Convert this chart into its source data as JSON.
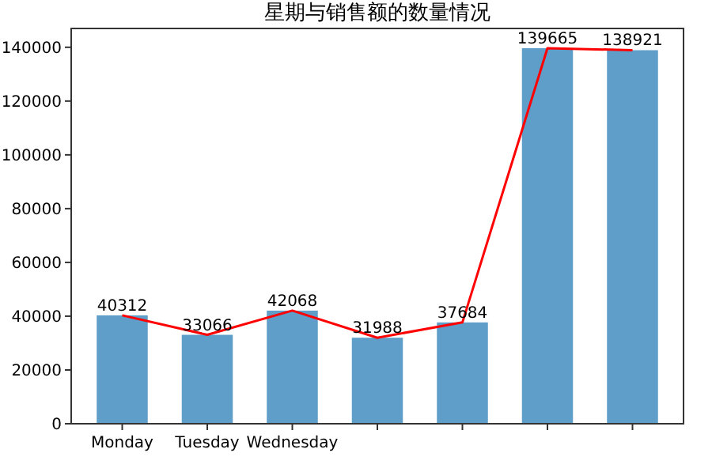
{
  "chart_data": {
    "type": "bar",
    "title": "星期与销售额的数量情况",
    "categories": [
      "Monday",
      "Tuesday",
      "Wednesday",
      null,
      null,
      null,
      null
    ],
    "series": [
      {
        "color": "#5f9ec9",
        "values": [
          40312,
          33066,
          42068,
          31988,
          37684,
          139665,
          138921
        ],
        "value_labels": [
          "40312",
          "33066",
          "42068",
          "31988",
          "37684",
          "139665",
          "138921"
        ]
      },
      {
        "type": "line",
        "color": "#ff0000",
        "values": [
          40312,
          33066,
          42068,
          31988,
          37684,
          139665,
          138921
        ]
      }
    ],
    "ylim": [
      0,
      147000
    ],
    "yticks": [
      0,
      20000,
      40000,
      60000,
      80000,
      100000,
      120000,
      140000
    ],
    "grid": false
  }
}
